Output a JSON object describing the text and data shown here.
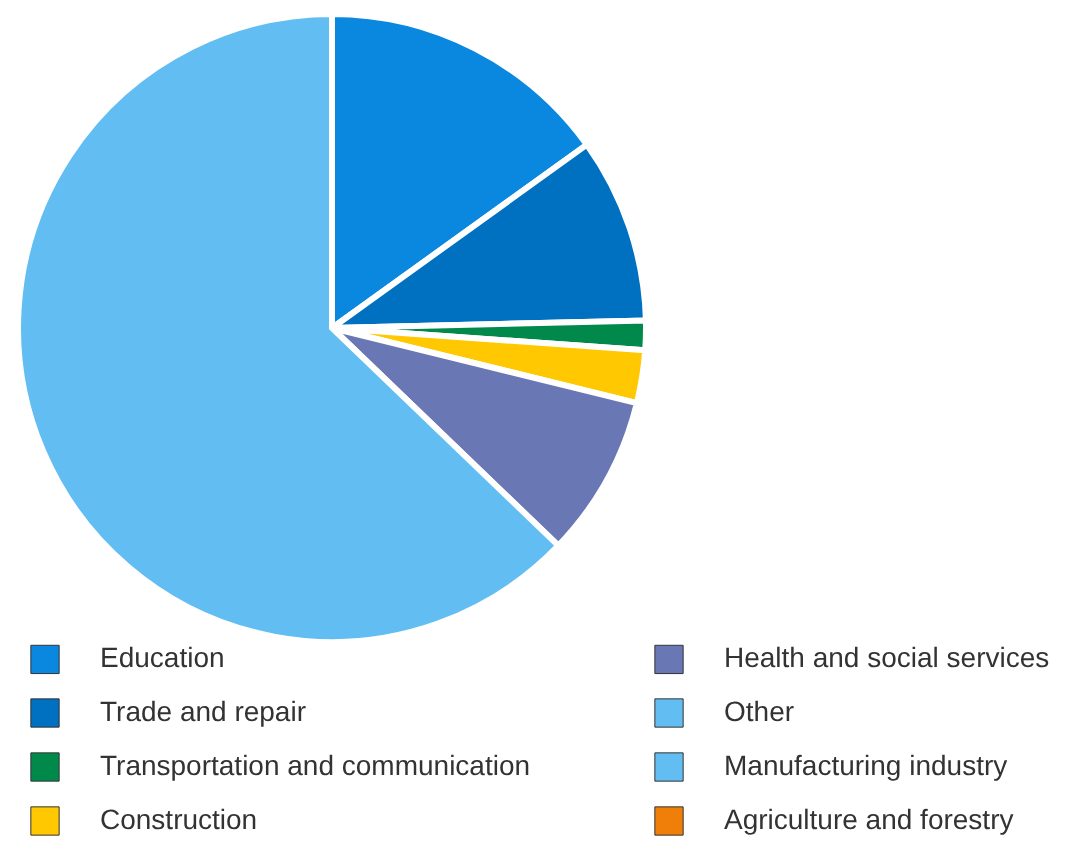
{
  "chart_data": {
    "type": "pie",
    "categories": [
      "Education",
      "Trade and repair",
      "Transportation and communication",
      "Construction",
      "Health and social services",
      "Other",
      "Manufacturing industry",
      "Agriculture and forestry"
    ],
    "values": [
      15,
      9.5,
      1.5,
      2.7,
      8.3,
      62.5,
      null,
      0
    ],
    "colors": [
      "#0a88e0",
      "#0070c0",
      "#00894a",
      "#ffc800",
      "#6a77b5",
      "#62bef2",
      "#62bef2",
      "#f07f09"
    ],
    "legend": "bottom"
  }
}
